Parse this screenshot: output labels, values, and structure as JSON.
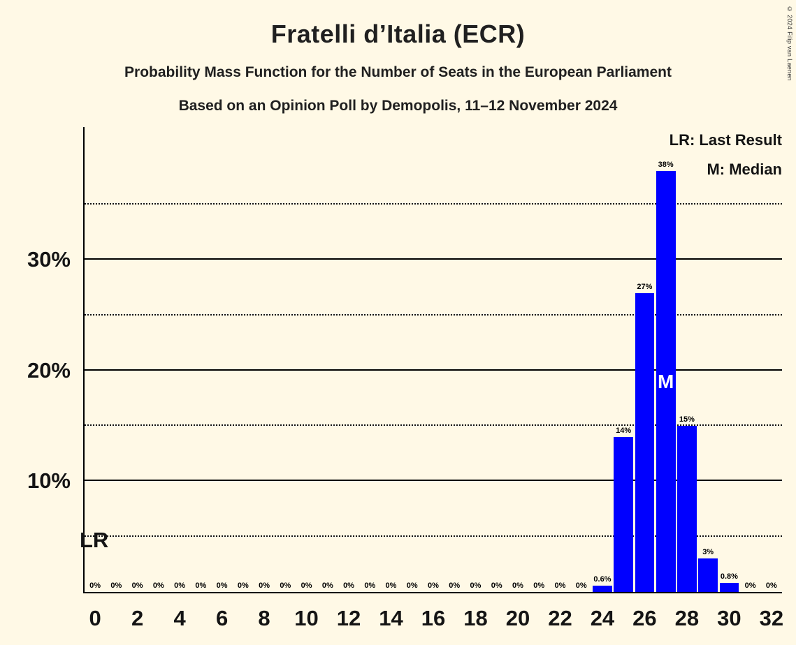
{
  "meta": {
    "copyright": "© 2024 Filip van Laenen"
  },
  "header": {
    "title": "Fratelli d’Italia (ECR)",
    "subtitle1": "Probability Mass Function for the Number of Seats in the European Parliament",
    "subtitle2": "Based on an Opinion Poll by Demopolis, 11–12 November 2024"
  },
  "legend": {
    "lr_label": "LR: Last Result",
    "m_label": "M: Median"
  },
  "annotations": {
    "lr_label": "LR"
  },
  "colors": {
    "background": "#fff9e6",
    "bar": "#0000ff",
    "text": "#141414",
    "median_text": "#ffffff"
  },
  "chart_data": {
    "type": "bar",
    "title": "Fratelli d’Italia (ECR)",
    "x": [
      0,
      1,
      2,
      3,
      4,
      5,
      6,
      7,
      8,
      9,
      10,
      11,
      12,
      13,
      14,
      15,
      16,
      17,
      18,
      19,
      20,
      21,
      22,
      23,
      24,
      25,
      26,
      27,
      28,
      29,
      30,
      31,
      32
    ],
    "values": [
      0,
      0,
      0,
      0,
      0,
      0,
      0,
      0,
      0,
      0,
      0,
      0,
      0,
      0,
      0,
      0,
      0,
      0,
      0,
      0,
      0,
      0,
      0,
      0,
      0.6,
      14,
      27,
      38,
      15,
      3,
      0.8,
      0,
      0
    ],
    "bar_labels": [
      "0%",
      "0%",
      "0%",
      "0%",
      "0%",
      "0%",
      "0%",
      "0%",
      "0%",
      "0%",
      "0%",
      "0%",
      "0%",
      "0%",
      "0%",
      "0%",
      "0%",
      "0%",
      "0%",
      "0%",
      "0%",
      "0%",
      "0%",
      "0%",
      "0.6%",
      "14%",
      "27%",
      "38%",
      "15%",
      "3%",
      "0.8%",
      "0%",
      "0%"
    ],
    "x_ticks": [
      0,
      2,
      4,
      6,
      8,
      10,
      12,
      14,
      16,
      18,
      20,
      22,
      24,
      26,
      28,
      30,
      32
    ],
    "y_ticks": [
      {
        "value": 10,
        "label": "10%"
      },
      {
        "value": 20,
        "label": "20%"
      },
      {
        "value": 30,
        "label": "30%"
      }
    ],
    "gridlines": [
      {
        "value": 5,
        "style": "dotted"
      },
      {
        "value": 10,
        "style": "solid"
      },
      {
        "value": 15,
        "style": "dotted"
      },
      {
        "value": 20,
        "style": "solid"
      },
      {
        "value": 25,
        "style": "dotted"
      },
      {
        "value": 30,
        "style": "solid"
      },
      {
        "value": 35,
        "style": "dotted"
      }
    ],
    "ylim": [
      0,
      42
    ],
    "grid": true,
    "legend_position": "top-right",
    "bar_color": "#0000ff",
    "median": {
      "seat": 27,
      "label": "M",
      "label_percent": 19
    },
    "last_result_label": "LR"
  }
}
